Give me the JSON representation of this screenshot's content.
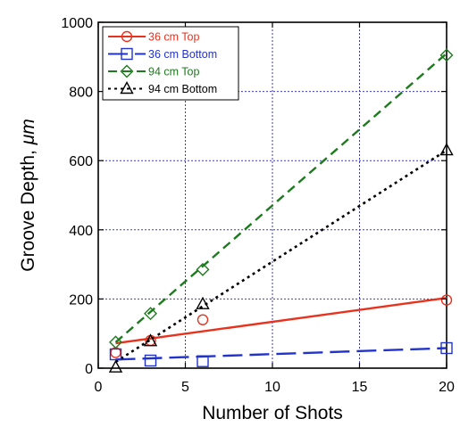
{
  "chart_data": {
    "type": "scatter",
    "xlabel": "Number of Shots",
    "ylabel_main": "Groove Depth, ",
    "ylabel_unit": "μm",
    "xlim": [
      0,
      20
    ],
    "ylim": [
      0,
      1000
    ],
    "xticks": [
      0,
      5,
      10,
      15,
      20
    ],
    "yticks": [
      0,
      200,
      400,
      600,
      800,
      1000
    ],
    "grid": true,
    "legend_position": "top-left",
    "series": [
      {
        "name": "36 cm Top",
        "color": "#e8321e",
        "marker": "circle",
        "line_style": "solid",
        "points": [
          [
            1,
            45
          ],
          [
            3,
            80
          ],
          [
            6,
            140
          ],
          [
            20,
            197
          ]
        ],
        "fit": [
          [
            1,
            72
          ],
          [
            20,
            203
          ]
        ]
      },
      {
        "name": "36 cm Bottom",
        "color": "#2233cc",
        "marker": "square",
        "line_style": "long-dash",
        "points": [
          [
            1,
            40
          ],
          [
            3,
            22
          ],
          [
            6,
            20
          ],
          [
            20,
            58
          ]
        ],
        "fit": [
          [
            1,
            25
          ],
          [
            20,
            58
          ]
        ]
      },
      {
        "name": "94 cm Top",
        "color": "#1e7a1e",
        "marker": "diamond",
        "line_style": "dash",
        "points": [
          [
            1,
            75
          ],
          [
            3,
            158
          ],
          [
            6,
            285
          ],
          [
            20,
            905
          ]
        ],
        "fit": [
          [
            1,
            75
          ],
          [
            20,
            910
          ]
        ]
      },
      {
        "name": "94 cm Bottom",
        "color": "#000000",
        "marker": "triangle",
        "line_style": "dot",
        "points": [
          [
            1,
            2
          ],
          [
            3,
            78
          ],
          [
            6,
            185
          ],
          [
            20,
            630
          ]
        ],
        "fit": [
          [
            1,
            18
          ],
          [
            20,
            630
          ]
        ]
      }
    ]
  }
}
